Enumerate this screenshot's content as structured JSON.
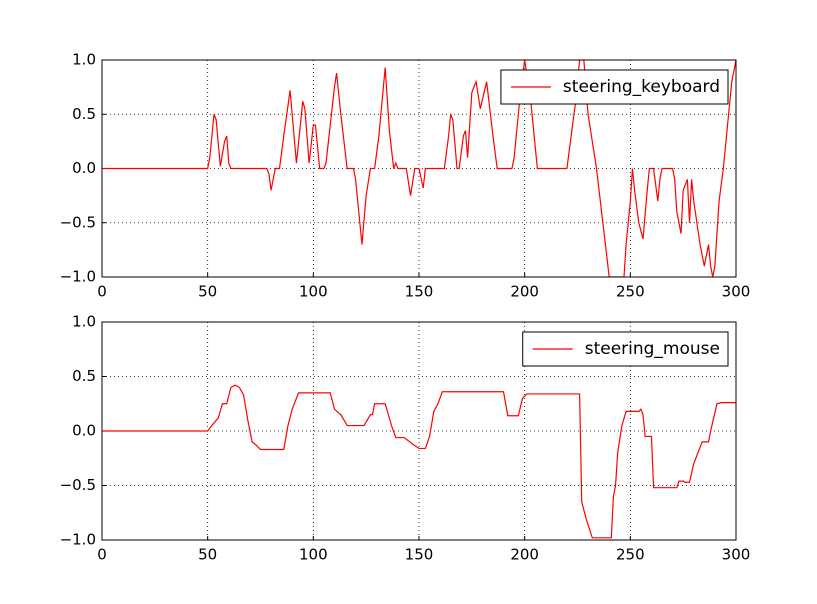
{
  "chart_data": [
    {
      "type": "line",
      "x": [
        0,
        50,
        51,
        53,
        54,
        56,
        58,
        59,
        60,
        61,
        78,
        79,
        80,
        82,
        84,
        86,
        89,
        92,
        95,
        96,
        98,
        100,
        101,
        103,
        105,
        106,
        108,
        110,
        111,
        113,
        116,
        119,
        120,
        122,
        123,
        125,
        127,
        129,
        131,
        134,
        136,
        138,
        139,
        140,
        144,
        146,
        148,
        150,
        152,
        153,
        162,
        164,
        165,
        166,
        168,
        169,
        171,
        172,
        173,
        175,
        177,
        179,
        182,
        185,
        187,
        194,
        195,
        197,
        198,
        200,
        203,
        206,
        220,
        224,
        226,
        228,
        230,
        234,
        237,
        240,
        243,
        247,
        248,
        250,
        251,
        252,
        254,
        256,
        258,
        259,
        261,
        263,
        264,
        265,
        270,
        271,
        272,
        274,
        275,
        277,
        278,
        279,
        280,
        283,
        285,
        286,
        287,
        288,
        289,
        290,
        292,
        294,
        296,
        298,
        300
      ],
      "series": [
        {
          "name": "steering_keyboard",
          "color": "#ff0000",
          "values": [
            0,
            0,
            0.1,
            0.5,
            0.45,
            0.02,
            0.25,
            0.3,
            0.05,
            0,
            0,
            -0.05,
            -0.2,
            0,
            0,
            0.3,
            0.72,
            0.05,
            0.62,
            0.55,
            0.05,
            0.4,
            0.4,
            0,
            0,
            0.05,
            0.4,
            0.75,
            0.88,
            0.5,
            0,
            0,
            -0.1,
            -0.5,
            -0.7,
            -0.25,
            0,
            0,
            0.3,
            0.93,
            0.35,
            0,
            0.05,
            0,
            0,
            -0.25,
            0,
            0,
            -0.18,
            0,
            0,
            0.3,
            0.5,
            0.45,
            0,
            0,
            0.3,
            0.35,
            0.1,
            0.7,
            0.8,
            0.55,
            0.8,
            0.3,
            0,
            0,
            0.1,
            0.5,
            0.7,
            1.0,
            0.6,
            0,
            0,
            0.6,
            1.0,
            1.0,
            0.5,
            0,
            -0.5,
            -1.0,
            -1.0,
            -1.0,
            -0.7,
            -0.3,
            0,
            -0.2,
            -0.5,
            -0.65,
            -0.2,
            0,
            0,
            -0.3,
            -0.1,
            0,
            0,
            -0.1,
            -0.4,
            -0.6,
            -0.2,
            -0.1,
            -0.5,
            -0.1,
            -0.3,
            -0.7,
            -0.9,
            -0.8,
            -0.7,
            -0.9,
            -1.0,
            -0.9,
            -0.3,
            0,
            0.4,
            0.8,
            1.0
          ]
        }
      ],
      "xlim": [
        0,
        300
      ],
      "ylim": [
        -1,
        1
      ],
      "xticks": [
        0,
        50,
        100,
        150,
        200,
        250,
        300
      ],
      "yticks": [
        {
          "value": -1,
          "label": "−1.0"
        },
        {
          "value": -0.5,
          "label": "−0.5"
        },
        {
          "value": 0,
          "label": "0.0"
        },
        {
          "value": 0.5,
          "label": "0.5"
        },
        {
          "value": 1,
          "label": "1.0"
        }
      ],
      "grid": true,
      "legend": "upper right"
    },
    {
      "type": "line",
      "x": [
        0,
        50,
        52,
        55,
        57,
        59,
        61,
        63,
        65,
        67,
        69,
        71,
        73,
        75,
        86,
        88,
        90,
        93,
        95,
        108,
        110,
        113,
        116,
        124,
        127,
        128,
        129,
        134,
        137,
        139,
        143,
        147,
        150,
        153,
        155,
        157,
        159,
        161,
        190,
        192,
        197,
        199,
        201,
        226,
        227,
        229,
        232,
        241,
        242,
        243,
        244,
        246,
        248,
        254,
        255,
        256,
        257,
        260,
        261,
        272,
        273,
        275,
        276,
        278,
        280,
        284,
        287,
        288,
        291,
        293,
        300
      ],
      "series": [
        {
          "name": "steering_mouse",
          "color": "#ff0000",
          "values": [
            0,
            0,
            0.05,
            0.12,
            0.25,
            0.25,
            0.4,
            0.42,
            0.4,
            0.33,
            0.1,
            -0.1,
            -0.13,
            -0.17,
            -0.17,
            0.05,
            0.2,
            0.35,
            0.35,
            0.35,
            0.2,
            0.15,
            0.05,
            0.05,
            0.15,
            0.15,
            0.25,
            0.25,
            0.05,
            -0.06,
            -0.06,
            -0.12,
            -0.16,
            -0.16,
            -0.05,
            0.18,
            0.25,
            0.36,
            0.36,
            0.14,
            0.14,
            0.3,
            0.34,
            0.34,
            -0.65,
            -0.8,
            -0.98,
            -0.98,
            -0.6,
            -0.5,
            -0.2,
            0.05,
            0.18,
            0.18,
            0.2,
            0.15,
            -0.05,
            -0.05,
            -0.52,
            -0.52,
            -0.46,
            -0.46,
            -0.47,
            -0.47,
            -0.3,
            -0.1,
            -0.1,
            0,
            0.25,
            0.26,
            0.26
          ]
        }
      ],
      "xlim": [
        0,
        300
      ],
      "ylim": [
        -1,
        1
      ],
      "xticks": [
        0,
        50,
        100,
        150,
        200,
        250,
        300
      ],
      "yticks": [
        {
          "value": -1,
          "label": "−1.0"
        },
        {
          "value": -0.5,
          "label": "−0.5"
        },
        {
          "value": 0,
          "label": "0.0"
        },
        {
          "value": 0.5,
          "label": "0.5"
        },
        {
          "value": 1,
          "label": "1.0"
        }
      ],
      "grid": true,
      "legend": "upper right"
    }
  ]
}
